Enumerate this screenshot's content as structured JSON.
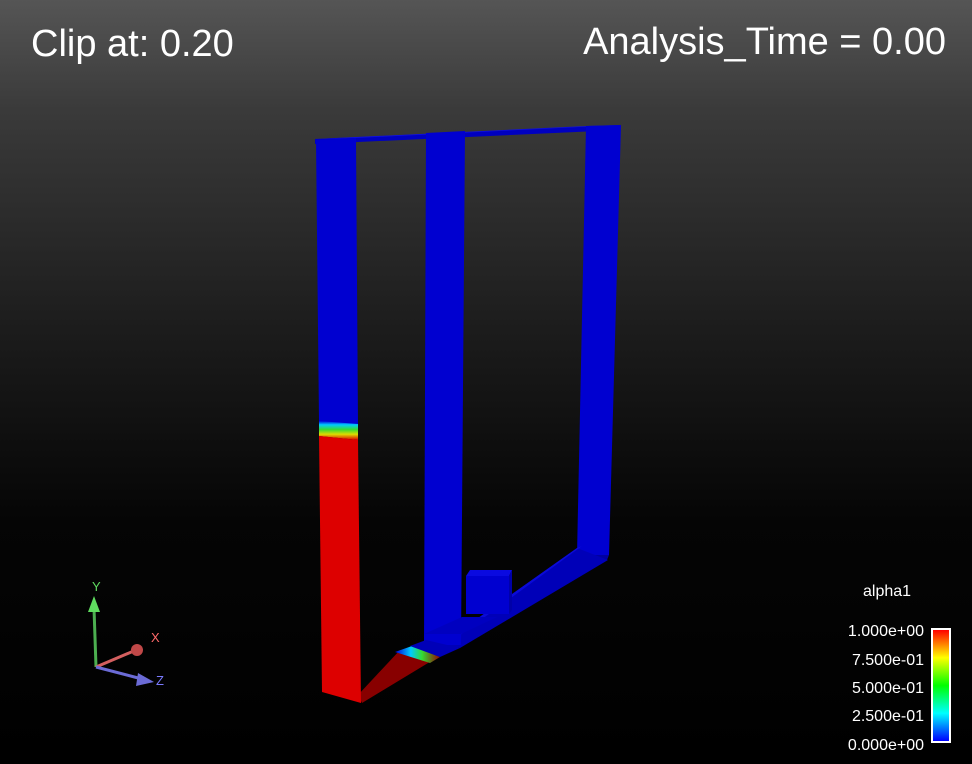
{
  "overlay": {
    "clip_label": "Clip at: 0.20",
    "time_label": "Analysis_Time = 0.00"
  },
  "legend": {
    "title": "alpha1",
    "ticks": [
      "1.000e+00",
      "7.500e-01",
      "5.000e-01",
      "2.500e-01",
      "0.000e+00"
    ],
    "colormap": [
      "#ff0000",
      "#ffff00",
      "#00ff00",
      "#00ffff",
      "#0000ff"
    ]
  },
  "orientation_axes": {
    "y_label": "Y",
    "x_label": "X",
    "z_label": "Z",
    "y_color": "#4caf50",
    "x_color": "#d35f5f",
    "z_color": "#6b6bd6"
  },
  "model": {
    "air_color": "#0000dd",
    "water_color": "#dd0000"
  }
}
